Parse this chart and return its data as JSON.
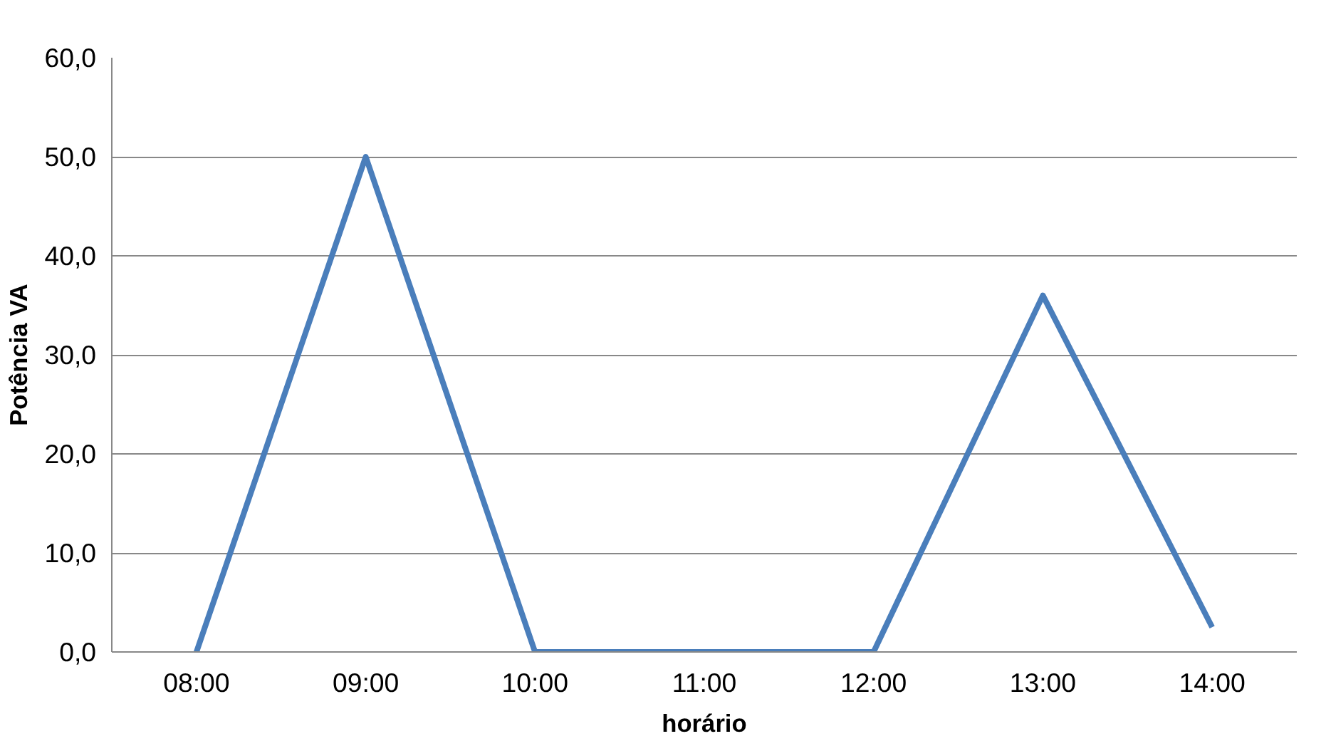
{
  "chart_data": {
    "type": "line",
    "xlabel": "horário",
    "ylabel": "Potência VA",
    "categories": [
      "08:00",
      "09:00",
      "10:00",
      "11:00",
      "12:00",
      "13:00",
      "14:00"
    ],
    "series": [
      {
        "color": "#4a7ebb",
        "values": [
          0,
          50,
          0,
          0,
          0,
          36,
          2.5
        ]
      }
    ],
    "ylim": [
      0,
      60
    ],
    "yticks": [
      {
        "value": 0,
        "label": "0,0"
      },
      {
        "value": 10,
        "label": "10,0"
      },
      {
        "value": 20,
        "label": "20,0"
      },
      {
        "value": 30,
        "label": "30,0"
      },
      {
        "value": 40,
        "label": "40,0"
      },
      {
        "value": 50,
        "label": "50,0"
      },
      {
        "value": 60,
        "label": "60,0"
      }
    ],
    "grid": "y",
    "marker": "none",
    "line_style": "solid"
  }
}
